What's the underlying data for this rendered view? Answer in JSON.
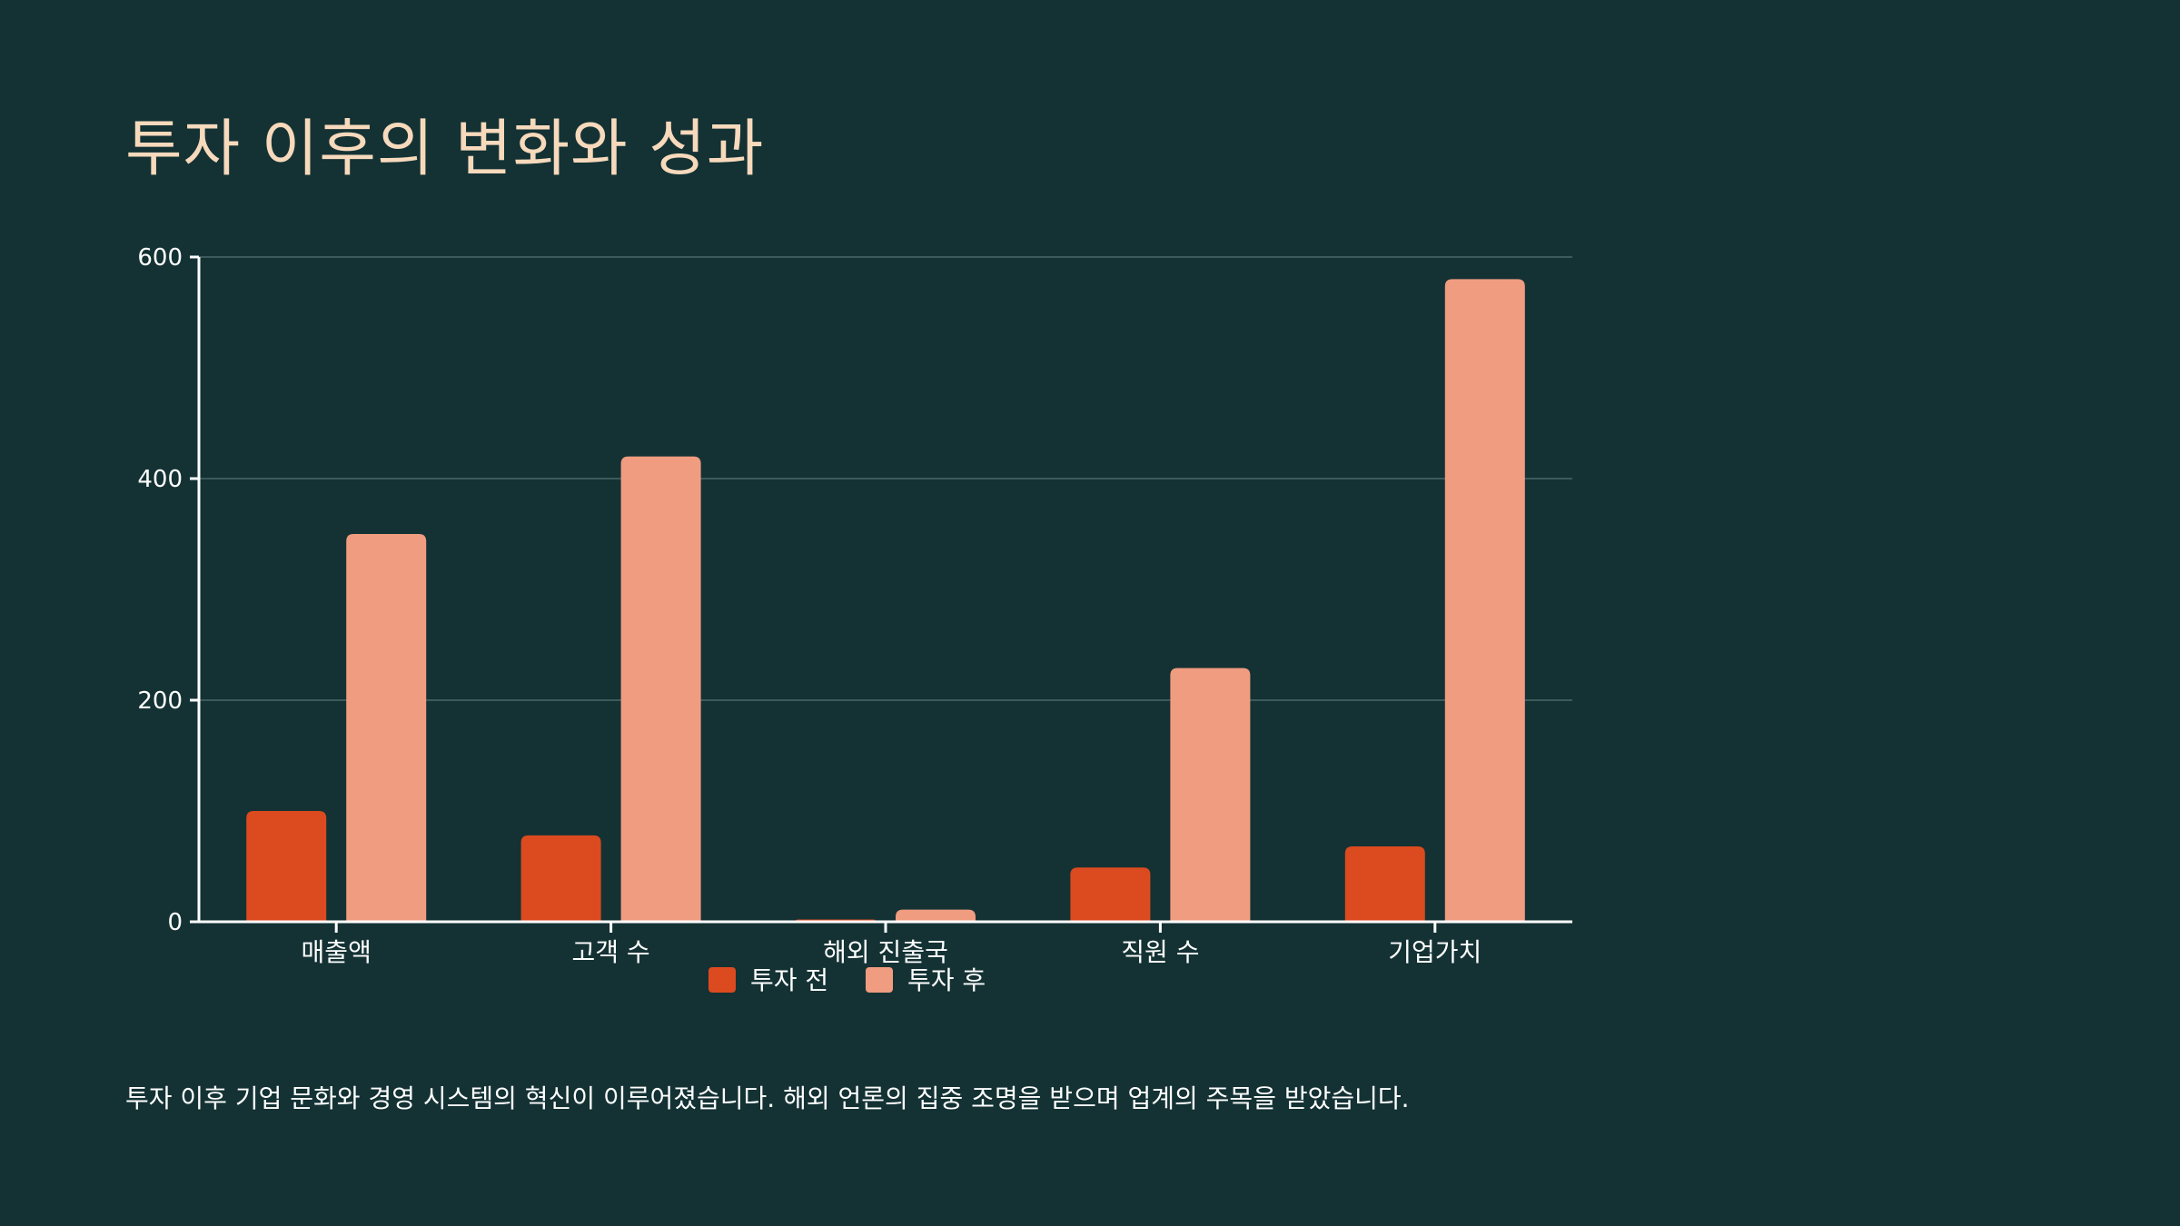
{
  "slide": {
    "title": "투자 이후의 변화와 성과",
    "caption": "투자 이후 기업 문화와 경영 시스템의 혁신이 이루어졌습니다. 해외 언론의 집중 조명을 받으며 업계의 주목을 받았습니다."
  },
  "colors": {
    "background": "#143234",
    "title": "#F7D9BC",
    "before": "#DC4A1F",
    "after": "#F09C80",
    "axis": "#FFFFFF",
    "grid": "#4A6868"
  },
  "chart_data": {
    "type": "bar",
    "title": "",
    "xlabel": "",
    "ylabel": "",
    "categories": [
      "매출액",
      "고객 수",
      "해외 진출국",
      "직원 수",
      "기업가치"
    ],
    "series": [
      {
        "name": "투자 전",
        "values": [
          100,
          78,
          2,
          49,
          68
        ]
      },
      {
        "name": "투자 후",
        "values": [
          350,
          420,
          11,
          229,
          580
        ]
      }
    ],
    "ylim": [
      0,
      600
    ],
    "yticks": [
      0,
      200,
      400,
      600
    ],
    "grid": true,
    "legend": "bottom-center"
  }
}
